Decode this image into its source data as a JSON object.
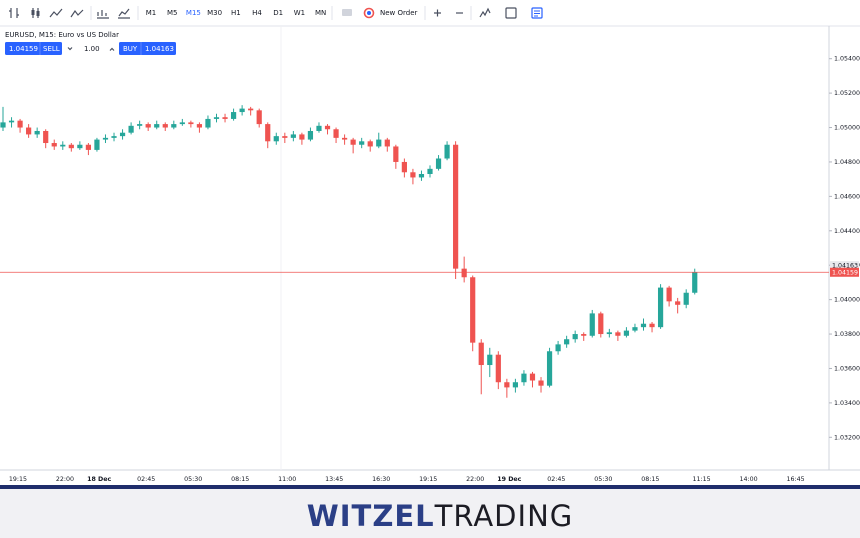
{
  "toolbar": {
    "timeframes": [
      "M1",
      "M5",
      "M15",
      "M30",
      "H1",
      "H4",
      "D1",
      "W1",
      "MN"
    ],
    "active_timeframe": "M15",
    "new_order": "New Order"
  },
  "trade_panel": {
    "title": "EURUSD, M15: Euro vs US Dollar",
    "sell_price": "1.04159",
    "sell_label": "SELL",
    "volume": "1.00",
    "buy_label": "BUY",
    "buy_price": "1.04163"
  },
  "chart": {
    "type": "candlestick",
    "bull_color": "#26a69a",
    "bear_color": "#ef5350",
    "ylim": [
      1.0301,
      1.0559
    ],
    "yticks": [
      {
        "value": 1.054,
        "label": "1.05400"
      },
      {
        "value": 1.052,
        "label": "1.05200"
      },
      {
        "value": 1.05,
        "label": "1.05000"
      },
      {
        "value": 1.048,
        "label": "1.04800"
      },
      {
        "value": 1.046,
        "label": "1.04600"
      },
      {
        "value": 1.044,
        "label": "1.04400"
      },
      {
        "value": 1.042,
        "label": "1.04200"
      },
      {
        "value": 1.04,
        "label": "1.04000"
      },
      {
        "value": 1.038,
        "label": "1.03800"
      },
      {
        "value": 1.036,
        "label": "1.03600"
      },
      {
        "value": 1.034,
        "label": "1.03400"
      },
      {
        "value": 1.032,
        "label": "1.03200"
      }
    ],
    "xtick_labels": [
      "19:15",
      "22:00",
      "18 Dec",
      "02:45",
      "05:30",
      "08:15",
      "11:00",
      "13:45",
      "16:30",
      "19:15",
      "22:00",
      "19 Dec",
      "02:45",
      "05:30",
      "08:15",
      "11:15",
      "14:00",
      "16:45"
    ],
    "bid": {
      "value": 1.04159,
      "label": "1.04159",
      "color": "#ef5350"
    },
    "ask": {
      "value": 1.04163,
      "label": "1.04163"
    },
    "candles": [
      [
        1.05,
        1.0512,
        1.0498,
        1.0503
      ],
      [
        1.0503,
        1.0506,
        1.05,
        1.0504
      ],
      [
        1.0504,
        1.0505,
        1.0497,
        1.05
      ],
      [
        1.05,
        1.0502,
        1.0494,
        1.0496
      ],
      [
        1.0496,
        1.05,
        1.0494,
        1.0498
      ],
      [
        1.0498,
        1.0499,
        1.0488,
        1.0491
      ],
      [
        1.0491,
        1.0493,
        1.0487,
        1.0489
      ],
      [
        1.0489,
        1.0492,
        1.0487,
        1.049
      ],
      [
        1.049,
        1.0491,
        1.0486,
        1.0488
      ],
      [
        1.0488,
        1.0492,
        1.0487,
        1.049
      ],
      [
        1.049,
        1.0491,
        1.0484,
        1.0487
      ],
      [
        1.0487,
        1.0494,
        1.0486,
        1.0493
      ],
      [
        1.0493,
        1.0496,
        1.0491,
        1.0494
      ],
      [
        1.0494,
        1.0497,
        1.0492,
        1.0495
      ],
      [
        1.0495,
        1.0499,
        1.0493,
        1.0497
      ],
      [
        1.0497,
        1.0503,
        1.0496,
        1.0501
      ],
      [
        1.0501,
        1.0504,
        1.0499,
        1.0502
      ],
      [
        1.0502,
        1.0503,
        1.0498,
        1.05
      ],
      [
        1.05,
        1.0504,
        1.0499,
        1.0502
      ],
      [
        1.0502,
        1.0503,
        1.0498,
        1.05
      ],
      [
        1.05,
        1.0504,
        1.0499,
        1.0502
      ],
      [
        1.0502,
        1.0505,
        1.0501,
        1.0503
      ],
      [
        1.0503,
        1.0504,
        1.05,
        1.0502
      ],
      [
        1.0502,
        1.0503,
        1.0497,
        1.05
      ],
      [
        1.05,
        1.0507,
        1.0499,
        1.0505
      ],
      [
        1.0505,
        1.0508,
        1.0503,
        1.0506
      ],
      [
        1.0506,
        1.0508,
        1.0503,
        1.0505
      ],
      [
        1.0505,
        1.0511,
        1.0504,
        1.0509
      ],
      [
        1.0509,
        1.0513,
        1.0507,
        1.0511
      ],
      [
        1.0511,
        1.0512,
        1.0507,
        1.051
      ],
      [
        1.051,
        1.0511,
        1.05,
        1.0502
      ],
      [
        1.0502,
        1.0503,
        1.0488,
        1.0492
      ],
      [
        1.0492,
        1.0497,
        1.049,
        1.0495
      ],
      [
        1.0495,
        1.0497,
        1.0491,
        1.0494
      ],
      [
        1.0494,
        1.0498,
        1.0492,
        1.0496
      ],
      [
        1.0496,
        1.0497,
        1.049,
        1.0493
      ],
      [
        1.0493,
        1.05,
        1.0492,
        1.0498
      ],
      [
        1.0498,
        1.0503,
        1.0497,
        1.0501
      ],
      [
        1.0501,
        1.0502,
        1.0496,
        1.0499
      ],
      [
        1.0499,
        1.05,
        1.0491,
        1.0494
      ],
      [
        1.0494,
        1.0496,
        1.049,
        1.0493
      ],
      [
        1.0493,
        1.0494,
        1.0485,
        1.049
      ],
      [
        1.049,
        1.0494,
        1.0488,
        1.0492
      ],
      [
        1.0492,
        1.0493,
        1.0486,
        1.0489
      ],
      [
        1.0489,
        1.0497,
        1.0488,
        1.0493
      ],
      [
        1.0493,
        1.0494,
        1.0486,
        1.0489
      ],
      [
        1.0489,
        1.049,
        1.0476,
        1.048
      ],
      [
        1.048,
        1.0482,
        1.0471,
        1.0474
      ],
      [
        1.0474,
        1.0476,
        1.0467,
        1.0471
      ],
      [
        1.0471,
        1.0475,
        1.0469,
        1.0473
      ],
      [
        1.0473,
        1.0478,
        1.0471,
        1.0476
      ],
      [
        1.0476,
        1.0484,
        1.0475,
        1.0482
      ],
      [
        1.0482,
        1.0492,
        1.0481,
        1.049
      ],
      [
        1.049,
        1.0492,
        1.0412,
        1.0418
      ],
      [
        1.0418,
        1.0425,
        1.041,
        1.0413
      ],
      [
        1.0413,
        1.0414,
        1.037,
        1.0375
      ],
      [
        1.0375,
        1.0377,
        1.0345,
        1.0362
      ],
      [
        1.0362,
        1.0372,
        1.0355,
        1.0368
      ],
      [
        1.0368,
        1.037,
        1.0348,
        1.0352
      ],
      [
        1.0352,
        1.0354,
        1.0343,
        1.0349
      ],
      [
        1.0349,
        1.0354,
        1.0346,
        1.0352
      ],
      [
        1.0352,
        1.0359,
        1.035,
        1.0357
      ],
      [
        1.0357,
        1.0358,
        1.0349,
        1.0353
      ],
      [
        1.0353,
        1.0355,
        1.0346,
        1.035
      ],
      [
        1.035,
        1.0372,
        1.0349,
        1.037
      ],
      [
        1.037,
        1.0376,
        1.0368,
        1.0374
      ],
      [
        1.0374,
        1.0379,
        1.0372,
        1.0377
      ],
      [
        1.0377,
        1.0382,
        1.0375,
        1.038
      ],
      [
        1.038,
        1.0381,
        1.0376,
        1.0379
      ],
      [
        1.0379,
        1.0394,
        1.0378,
        1.0392
      ],
      [
        1.0392,
        1.0393,
        1.0378,
        1.038
      ],
      [
        1.038,
        1.0383,
        1.0378,
        1.0381
      ],
      [
        1.0381,
        1.0382,
        1.0376,
        1.0379
      ],
      [
        1.0379,
        1.0384,
        1.0378,
        1.0382
      ],
      [
        1.0382,
        1.0386,
        1.0381,
        1.0384
      ],
      [
        1.0384,
        1.0389,
        1.0382,
        1.0386
      ],
      [
        1.0386,
        1.0387,
        1.0381,
        1.0384
      ],
      [
        1.0384,
        1.0409,
        1.0383,
        1.0407
      ],
      [
        1.0407,
        1.0408,
        1.0396,
        1.0399
      ],
      [
        1.0399,
        1.0401,
        1.0392,
        1.0397
      ],
      [
        1.0397,
        1.0406,
        1.0395,
        1.0404
      ],
      [
        1.0404,
        1.0418,
        1.0403,
        1.0416
      ]
    ]
  },
  "footer": {
    "brand_left": "WITZEL",
    "brand_right": "TRADING"
  }
}
